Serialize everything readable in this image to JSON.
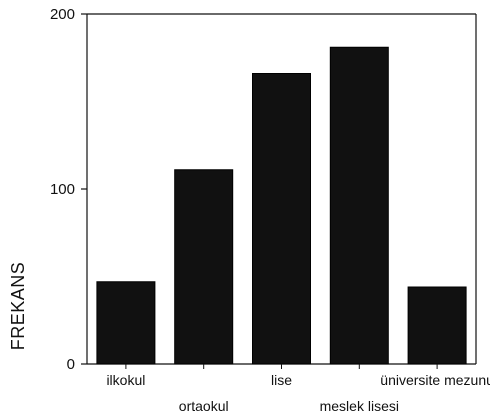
{
  "chart_data": {
    "type": "bar",
    "title": "",
    "xlabel": "",
    "ylabel": "FREKANS",
    "categories": [
      "ilkokul",
      "ortaokul",
      "lise",
      "meslek lisesi",
      "üniversite mezunu"
    ],
    "values": [
      47,
      111,
      166,
      181,
      44
    ],
    "ylim": [
      0,
      200
    ],
    "yticks": [
      "0",
      "100",
      "200"
    ],
    "grid": false,
    "bar_color": "#111111"
  }
}
